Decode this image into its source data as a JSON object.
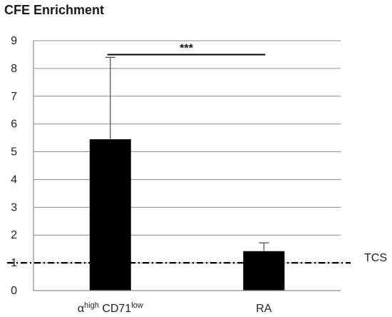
{
  "chart_data": {
    "type": "bar",
    "title": "CFE Enrichment",
    "xlabel": "",
    "ylabel": "",
    "ylim": [
      0,
      9
    ],
    "yticks": [
      0,
      1,
      2,
      3,
      4,
      5,
      6,
      7,
      8,
      9
    ],
    "grid": true,
    "categories": [
      {
        "base": "α",
        "sup1": "high",
        "mid": " CD71",
        "sup2": "low"
      },
      {
        "base": "RA",
        "sup1": "",
        "mid": "",
        "sup2": ""
      }
    ],
    "series": [
      {
        "values": [
          5.45,
          1.42
        ],
        "error_upper": [
          8.4,
          1.72
        ],
        "color": "#000000"
      }
    ],
    "reference_line": {
      "value": 1,
      "label": "TCS",
      "style": "dash-dot"
    },
    "significance": {
      "label": "***",
      "between": [
        0,
        1
      ],
      "level": 8.5
    }
  }
}
